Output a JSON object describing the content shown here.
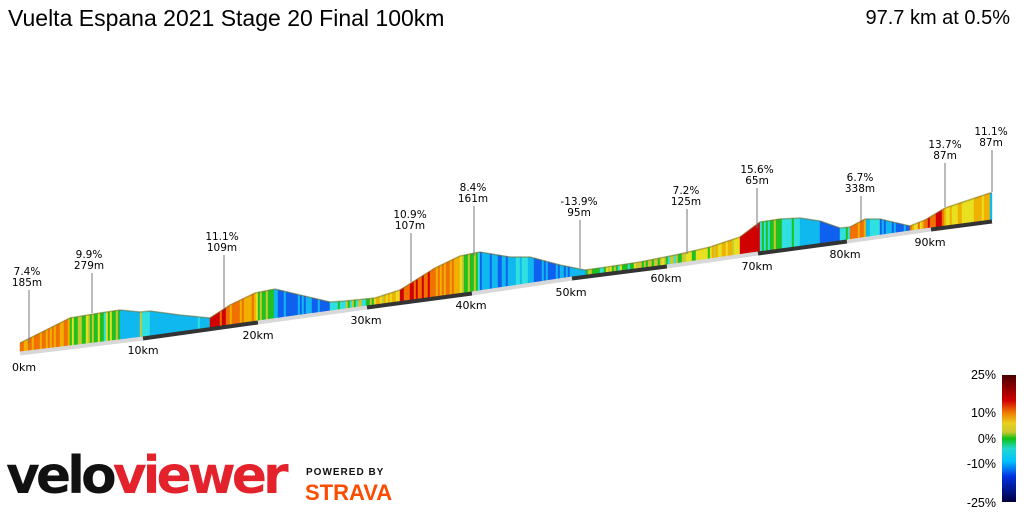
{
  "header": {
    "title": "Vuelta Espana 2021 Stage 20 Final 100km",
    "summary": "97.7 km at 0.5%"
  },
  "chart_data": {
    "type": "area",
    "title": "Vuelta Espana 2021 Stage 20 Final 100km",
    "distance_km": 97.7,
    "average_gradient": "0.5%",
    "x_ticks": [
      "0km",
      "10km",
      "20km",
      "30km",
      "40km",
      "50km",
      "60km",
      "70km",
      "80km",
      "90km"
    ],
    "annotations": [
      {
        "gradient": "7.4%",
        "length": "185m"
      },
      {
        "gradient": "9.9%",
        "length": "279m"
      },
      {
        "gradient": "11.1%",
        "length": "109m"
      },
      {
        "gradient": "10.9%",
        "length": "107m"
      },
      {
        "gradient": "8.4%",
        "length": "161m"
      },
      {
        "gradient": "-13.9%",
        "length": "95m"
      },
      {
        "gradient": "7.2%",
        "length": "125m"
      },
      {
        "gradient": "15.6%",
        "length": "65m"
      },
      {
        "gradient": "6.7%",
        "length": "338m"
      },
      {
        "gradient": "13.7%",
        "length": "87m"
      },
      {
        "gradient": "11.1%",
        "length": "87m"
      }
    ],
    "color_scale": {
      "labels": [
        "25%",
        "10%",
        "0%",
        "-10%",
        "-25%"
      ],
      "colors": [
        "#5a0000",
        "#e00000",
        "#f5a000",
        "#e8e020",
        "#10c010",
        "#20e0e0",
        "#0080ff",
        "#0000d0",
        "#000050"
      ]
    }
  },
  "branding": {
    "logo_velo": "velo",
    "logo_viewer": "viewer",
    "powered_by": "POWERED BY",
    "strava": "STRAVA",
    "strava_color": "#fc4c02",
    "viewer_color": "#e3222b"
  }
}
